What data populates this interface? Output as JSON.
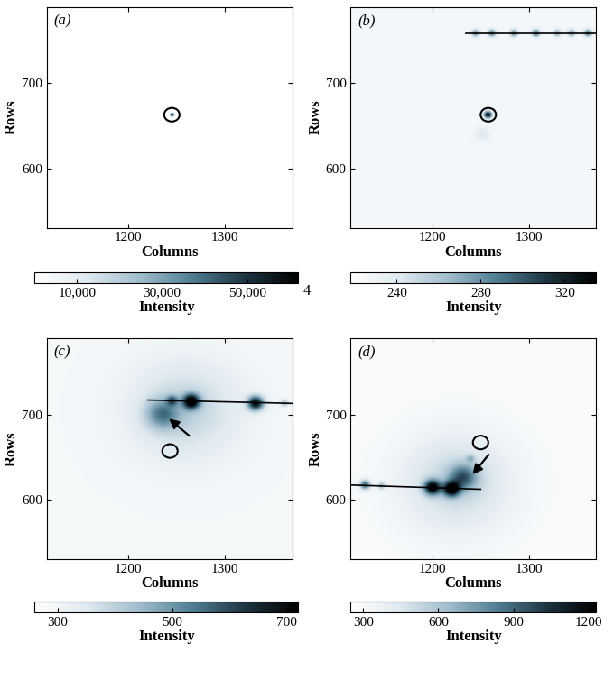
{
  "chart_data": [
    {
      "type": "heatmap",
      "panel_label": "(a)",
      "x_label": "Columns",
      "y_label": "Rows",
      "xlim": [
        1115,
        1370
      ],
      "ylim": [
        530,
        790
      ],
      "xticks": [
        1200,
        1300
      ],
      "yticks": [
        600,
        700
      ],
      "background": 0,
      "spots": [
        [
          1245,
          663,
          60000,
          1.5
        ]
      ],
      "circles": [
        [
          1245,
          663,
          8
        ]
      ],
      "lines": [],
      "arrows": [],
      "colorbar_label": "Intensity",
      "colorbar_range": [
        0,
        62000
      ],
      "colorbar_ticks": [
        {
          "value": 10000,
          "label": "10,000"
        },
        {
          "value": 30000,
          "label": "30,000"
        },
        {
          "value": 50000,
          "label": "50,000"
        }
      ]
    },
    {
      "type": "heatmap",
      "panel_label": "(b)",
      "x_label": "Columns",
      "y_label": "Rows",
      "xlim": [
        1115,
        1370
      ],
      "ylim": [
        530,
        790
      ],
      "xticks": [
        1200,
        1300
      ],
      "yticks": [
        600,
        700
      ],
      "background": 226,
      "spots": [
        [
          1258,
          663,
          105,
          3
        ],
        [
          1252,
          640,
          15,
          6
        ],
        [
          1245,
          759,
          60,
          3
        ],
        [
          1262,
          759,
          70,
          3
        ],
        [
          1285,
          759,
          65,
          3
        ],
        [
          1308,
          759,
          75,
          3
        ],
        [
          1330,
          759,
          50,
          3
        ],
        [
          1345,
          759,
          55,
          3
        ],
        [
          1362,
          759,
          70,
          3
        ]
      ],
      "circles": [
        [
          1258,
          663,
          8
        ]
      ],
      "lines": [
        [
          1235,
          759,
          1370,
          759
        ]
      ],
      "arrows": [],
      "colorbar_label": "Intensity",
      "colorbar_range": [
        218,
        335
      ],
      "colorbar_ticks": [
        240,
        280,
        320
      ]
    },
    {
      "type": "heatmap",
      "panel_label": "(c)",
      "x_label": "Columns",
      "y_label": "Rows",
      "xlim": [
        1115,
        1370
      ],
      "ylim": [
        530,
        790
      ],
      "xticks": [
        1200,
        1300
      ],
      "yticks": [
        600,
        700
      ],
      "background": 290,
      "spots": [
        [
          1258,
          705,
          110,
          40
        ],
        [
          1235,
          700,
          180,
          12
        ],
        [
          1245,
          716,
          200,
          4
        ],
        [
          1265,
          715,
          420,
          6
        ],
        [
          1332,
          713,
          400,
          6
        ],
        [
          1362,
          713,
          150,
          3
        ]
      ],
      "circles": [
        [
          1243,
          657,
          8
        ]
      ],
      "lines": [
        [
          1220,
          717,
          1370,
          713
        ]
      ],
      "arrows": [
        [
          1265,
          673,
          1240,
          697
        ]
      ],
      "colorbar_label": "Intensity",
      "colorbar_range": [
        260,
        720
      ],
      "colorbar_ticks": [
        300,
        500,
        700
      ]
    },
    {
      "type": "heatmap",
      "panel_label": "(d)",
      "x_label": "Columns",
      "y_label": "Rows",
      "xlim": [
        1115,
        1370
      ],
      "ylim": [
        530,
        790
      ],
      "xticks": [
        1200,
        1300
      ],
      "yticks": [
        600,
        700
      ],
      "background": 290,
      "spots": [
        [
          1225,
          620,
          250,
          40
        ],
        [
          1232,
          626,
          450,
          10
        ],
        [
          1130,
          617,
          600,
          4
        ],
        [
          1147,
          616,
          350,
          3
        ],
        [
          1200,
          614,
          850,
          6
        ],
        [
          1220,
          612,
          850,
          6
        ],
        [
          1240,
          648,
          200,
          3
        ]
      ],
      "circles": [
        [
          1250,
          667,
          8
        ]
      ],
      "lines": [
        [
          1115,
          617,
          1250,
          612
        ]
      ],
      "arrows": [
        [
          1260,
          655,
          1240,
          627
        ]
      ],
      "colorbar_label": "Intensity",
      "colorbar_range": [
        250,
        1230
      ],
      "colorbar_ticks": [
        300,
        600,
        900,
        1200
      ]
    }
  ],
  "figure_text": "4"
}
